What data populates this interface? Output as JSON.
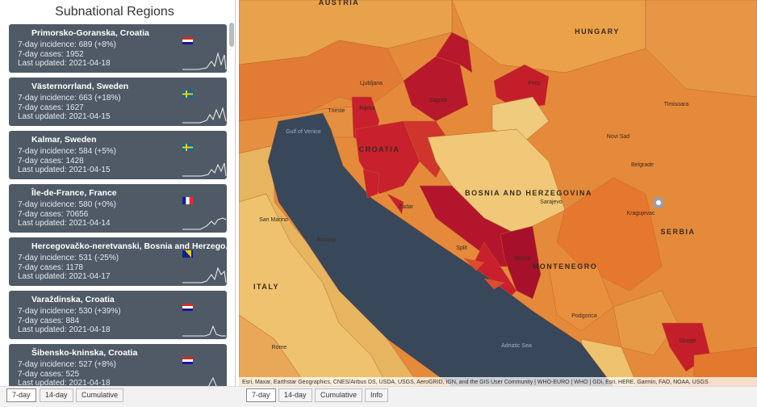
{
  "panel": {
    "title": "Subnational Regions",
    "cards": [
      {
        "name": "Primorsko-Goranska, Croatia",
        "incidence": "7-day incidence: 689 (+8%)",
        "cases": "7-day cases: 1952",
        "updated": "Last updated: 2021-04-18"
      },
      {
        "name": "Västernorrland, Sweden",
        "incidence": "7-day incidence: 663 (+18%)",
        "cases": "7-day cases: 1627",
        "updated": "Last updated: 2021-04-15"
      },
      {
        "name": "Kalmar, Sweden",
        "incidence": "7-day incidence: 584 (+5%)",
        "cases": "7-day cases: 1428",
        "updated": "Last updated: 2021-04-15"
      },
      {
        "name": "Île-de-France, France",
        "incidence": "7-day incidence: 580 (+0%)",
        "cases": "7-day cases: 70656",
        "updated": "Last updated: 2021-04-14"
      },
      {
        "name": "Hercegovačko-neretvanski, Bosnia and Herzego...",
        "incidence": "7-day incidence: 531 (-25%)",
        "cases": "7-day cases: 1178",
        "updated": "Last updated: 2021-04-17"
      },
      {
        "name": "Varaždinska, Croatia",
        "incidence": "7-day incidence: 530 (+39%)",
        "cases": "7-day cases: 884",
        "updated": "Last updated: 2021-04-18"
      },
      {
        "name": "Šibensko-kninska, Croatia",
        "incidence": "7-day incidence: 527 (+8%)",
        "cases": "7-day cases: 525",
        "updated": "Last updated: 2021-04-18"
      }
    ],
    "tabs": [
      "7-day",
      "14-day",
      "Cumulative"
    ]
  },
  "map": {
    "labels": [
      "AUSTRIA",
      "HUNGARY",
      "CROATIA",
      "BOSNIA AND HERZEGOVINA",
      "SERBIA",
      "ITALY",
      "MONTENEGRO",
      "Zagreb",
      "Belgrade",
      "Sarajevo",
      "Ljubljana",
      "Split",
      "Rijeka",
      "Novi Sad",
      "Skopje",
      "Rome",
      "Timisoara",
      "Pecs",
      "Adriatic Sea",
      "Gulf of Venice",
      "San Marino",
      "Ancona",
      "Zadar",
      "Mostar",
      "Podgorica",
      "Kragujevac",
      "Trieste"
    ],
    "attribution": "Esri, Maxar, Earthstar Geographics, CNES/Airbus DS, USDA, USGS, AeroGRID, IGN, and the GIS User Community | WHO-EURO | WHO | GDi, Esri, HERE, Garmin, FAO, NOAA, USGS",
    "tabs": [
      "7-day",
      "14-day",
      "Cumulative",
      "Info"
    ]
  }
}
